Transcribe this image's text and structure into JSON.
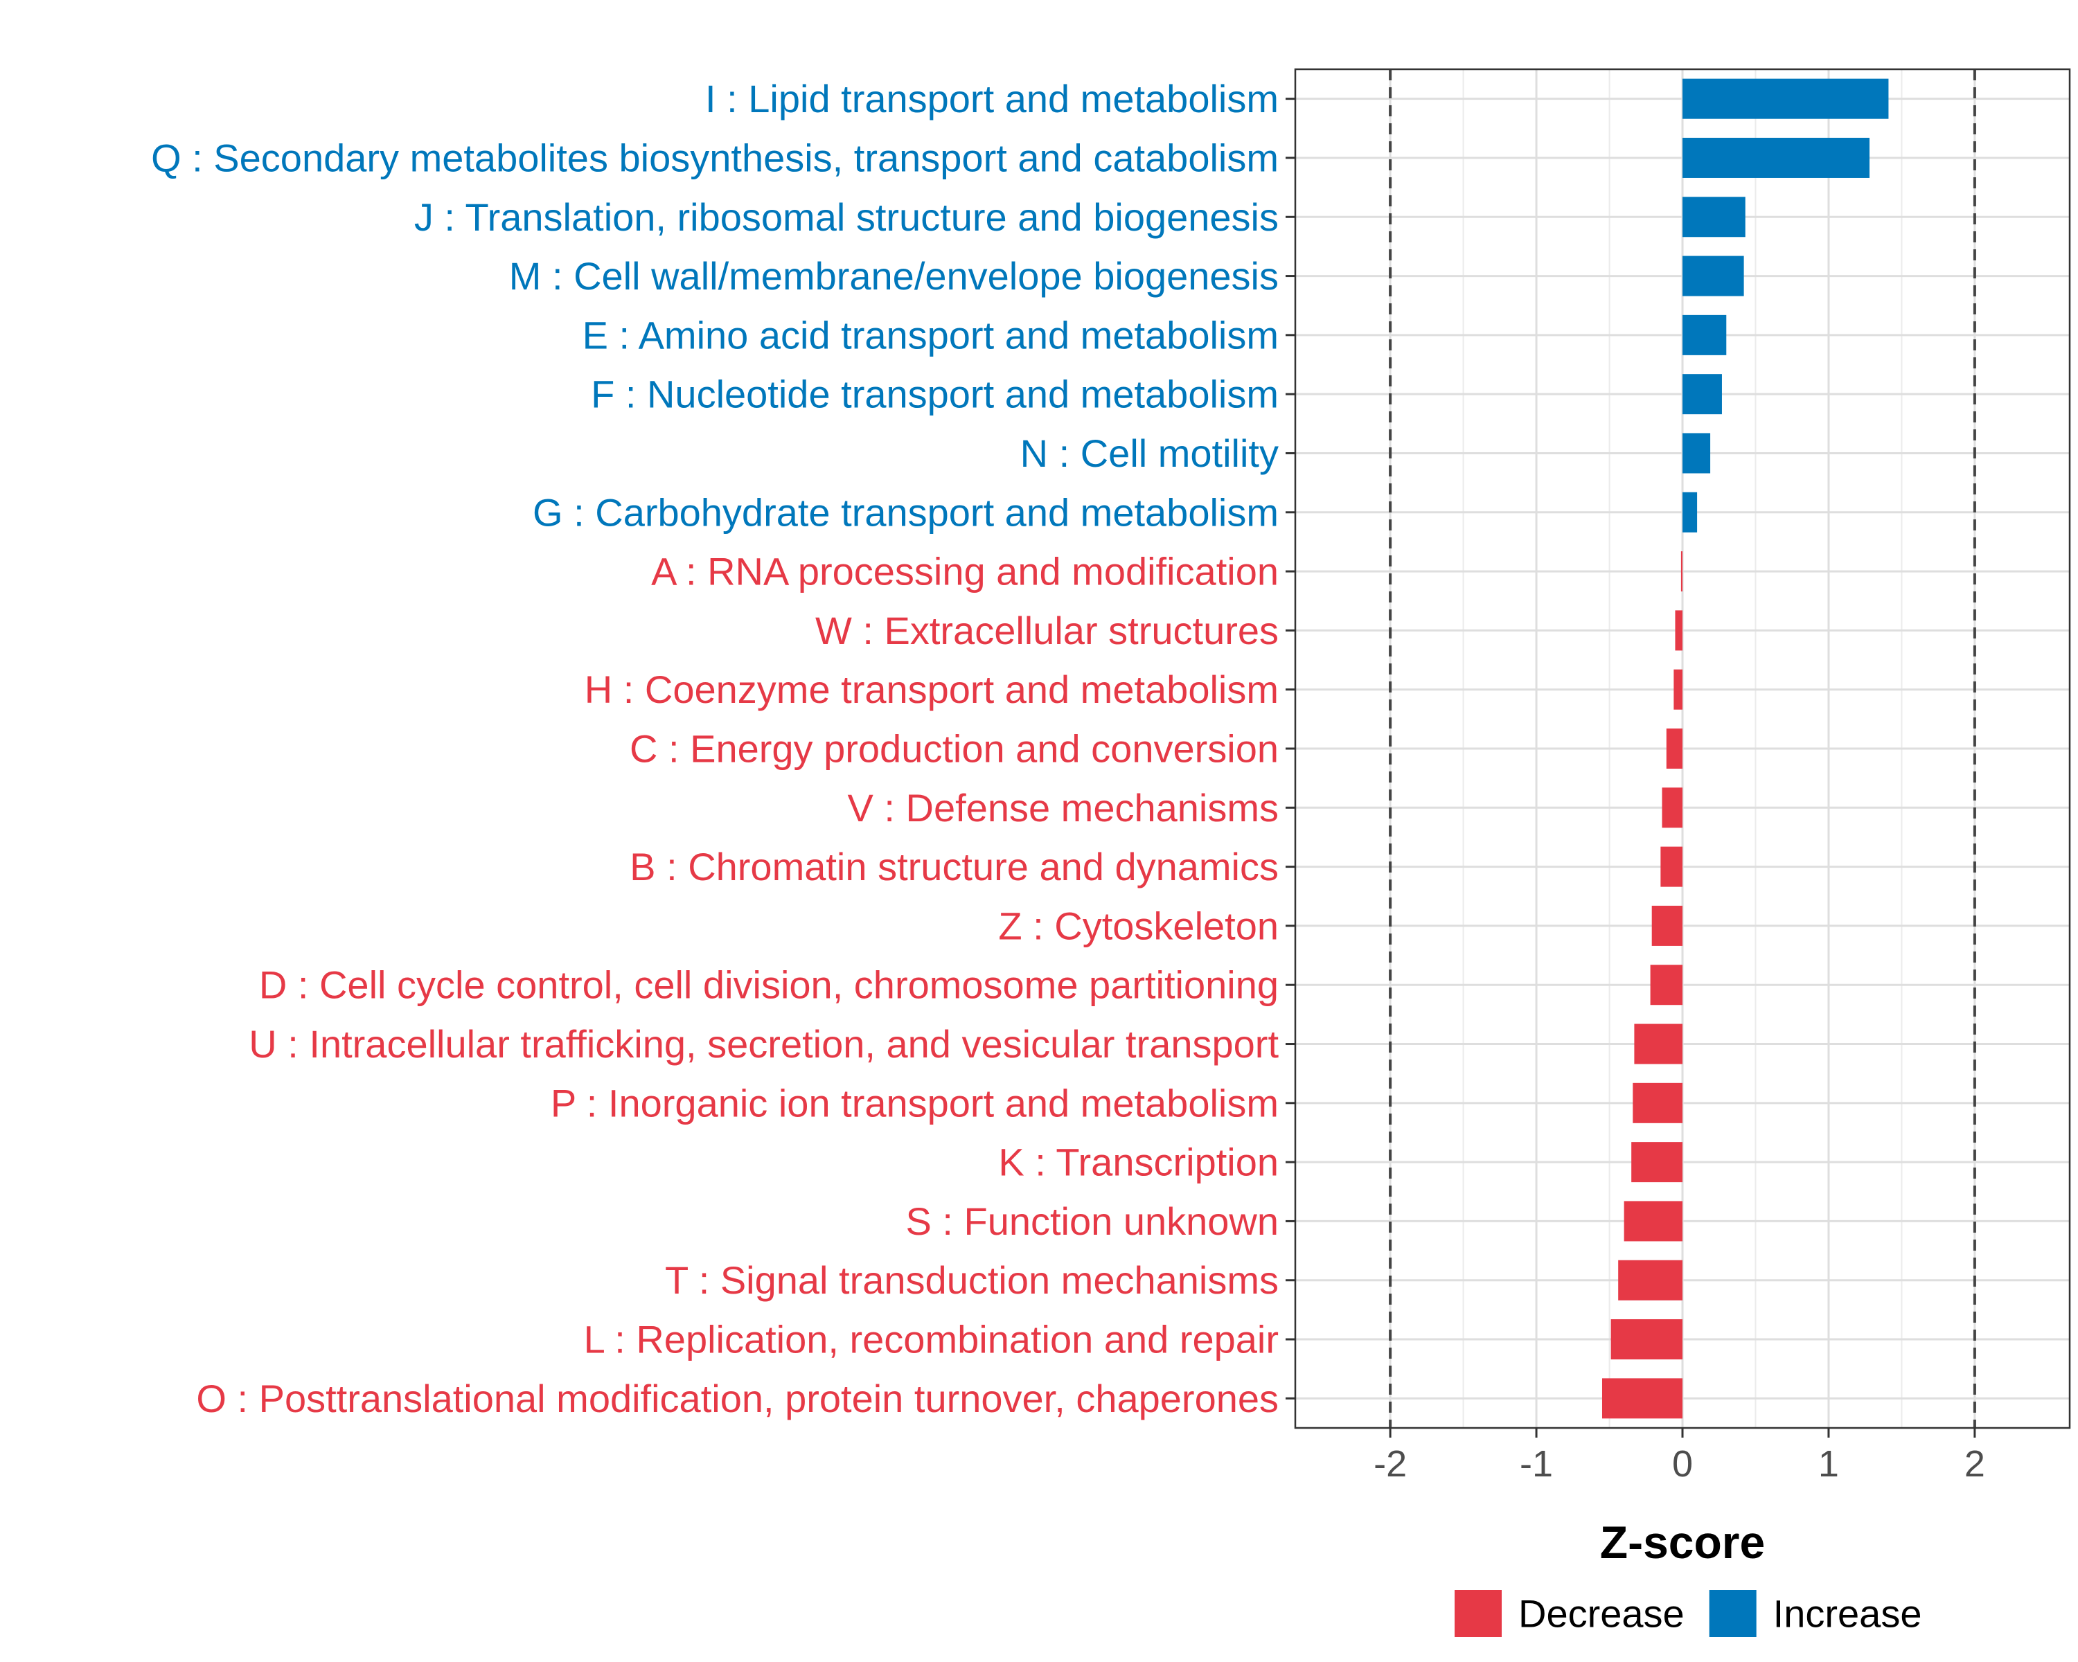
{
  "chart_data": {
    "type": "bar",
    "orientation": "horizontal",
    "title": "",
    "xlabel": "Z-score",
    "ylabel": "",
    "xlim": [
      -2.65,
      2.65
    ],
    "xticks": [
      -2,
      -1,
      0,
      1,
      2
    ],
    "xtick_labels": [
      "-2",
      "-1",
      "0",
      "1",
      "2"
    ],
    "reference_lines": [
      -2,
      2
    ],
    "grid": true,
    "colors": {
      "Increase": "#0077BB",
      "Decrease": "#E63946"
    },
    "legend": {
      "placement": "bottom",
      "items": [
        "Decrease",
        "Increase"
      ]
    },
    "categories": [
      "I : Lipid transport and metabolism",
      "Q : Secondary metabolites biosynthesis, transport and catabolism",
      "J : Translation, ribosomal structure and biogenesis",
      "M : Cell wall/membrane/envelope biogenesis",
      "E : Amino acid transport and metabolism",
      "F : Nucleotide transport and metabolism",
      "N : Cell motility",
      "G : Carbohydrate transport and metabolism",
      "A : RNA processing and modification",
      "W : Extracellular structures",
      "H : Coenzyme transport and metabolism",
      "C : Energy production and conversion",
      "V : Defense mechanisms",
      "B : Chromatin structure and dynamics",
      "Z : Cytoskeleton",
      "D : Cell cycle control, cell division, chromosome partitioning",
      "U : Intracellular trafficking, secretion, and vesicular transport",
      "P : Inorganic ion transport and metabolism",
      "K : Transcription",
      "S : Function unknown",
      "T : Signal transduction mechanisms",
      "L : Replication, recombination and repair",
      "O : Posttranslational modification, protein turnover, chaperones"
    ],
    "values": [
      1.41,
      1.28,
      0.43,
      0.42,
      0.3,
      0.27,
      0.19,
      0.1,
      -0.01,
      -0.05,
      -0.06,
      -0.11,
      -0.14,
      -0.15,
      -0.21,
      -0.22,
      -0.33,
      -0.34,
      -0.35,
      -0.4,
      -0.44,
      -0.49,
      -0.55
    ],
    "groups": [
      "Increase",
      "Increase",
      "Increase",
      "Increase",
      "Increase",
      "Increase",
      "Increase",
      "Increase",
      "Decrease",
      "Decrease",
      "Decrease",
      "Decrease",
      "Decrease",
      "Decrease",
      "Decrease",
      "Decrease",
      "Decrease",
      "Decrease",
      "Decrease",
      "Decrease",
      "Decrease",
      "Decrease",
      "Decrease"
    ]
  }
}
